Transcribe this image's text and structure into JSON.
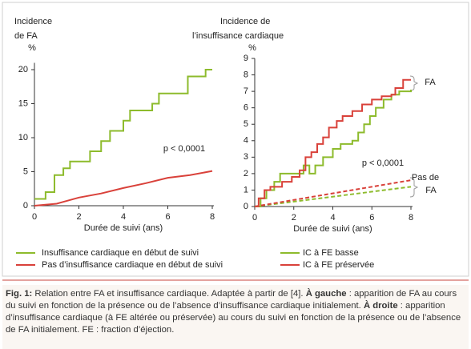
{
  "chart_data": [
    {
      "type": "line",
      "title": [
        "Incidence",
        "de FA"
      ],
      "ylabel": "%",
      "xlabel": "Durée de suivi (ans)",
      "annotation": "p < 0,0001",
      "xlim": [
        0,
        8
      ],
      "xticks": [
        0,
        2,
        4,
        6,
        8
      ],
      "ylim": [
        0,
        21
      ],
      "yticks": [
        0,
        5,
        10,
        15,
        20
      ],
      "series": [
        {
          "name": "Insuffisance cardiaque en début de suivi",
          "color": "#8dbb2c",
          "step": true,
          "dashed": false,
          "x": [
            0,
            0.5,
            0.9,
            1.3,
            1.6,
            2.5,
            3.0,
            3.4,
            4.0,
            4.3,
            5.3,
            5.6,
            6.9,
            7.7,
            8
          ],
          "values": [
            1,
            2,
            4.5,
            5.5,
            6.5,
            8,
            9.5,
            11,
            12.5,
            14,
            15,
            16.5,
            19,
            20,
            20
          ]
        },
        {
          "name": "Pas d’insuffisance cardiaque en début de suivi",
          "color": "#d9413a",
          "step": false,
          "dashed": false,
          "x": [
            0,
            1,
            2,
            3,
            4,
            5,
            6,
            7,
            8
          ],
          "values": [
            0,
            0.3,
            1.2,
            1.8,
            2.6,
            3.3,
            4.1,
            4.5,
            5.1
          ]
        }
      ]
    },
    {
      "type": "line",
      "title": [
        "Incidence de",
        "l’insuffisance cardiaque"
      ],
      "ylabel": "%",
      "xlabel": "Durée de suivi (ans)",
      "annotation": "p < 0,0001",
      "group_labels": [
        "FA",
        "Pas de",
        "FA"
      ],
      "xlim": [
        0,
        8
      ],
      "xticks": [
        0,
        2,
        4,
        6,
        8
      ],
      "ylim": [
        0,
        9
      ],
      "yticks": [
        0,
        1,
        2,
        3,
        4,
        5,
        6,
        7,
        8,
        9
      ],
      "series": [
        {
          "name": "IC à FE basse",
          "color": "#8dbb2c",
          "step": true,
          "dashed": false,
          "x": [
            0,
            0.3,
            0.6,
            1.0,
            1.3,
            2.5,
            2.8,
            3.1,
            3.5,
            4.0,
            4.4,
            5.0,
            5.3,
            5.6,
            5.9,
            6.2,
            6.6,
            7.0,
            7.4,
            8
          ],
          "values": [
            0,
            0.5,
            1,
            1.5,
            2,
            2.5,
            2,
            2.5,
            3,
            3.5,
            3.8,
            4,
            4.5,
            5,
            5.5,
            6,
            6.5,
            6.8,
            7,
            7.1
          ]
        },
        {
          "name": "IC à FE préservée",
          "color": "#d9413a",
          "step": true,
          "dashed": false,
          "x": [
            0,
            0.2,
            0.5,
            0.8,
            1.4,
            1.9,
            2.3,
            2.6,
            2.9,
            3.2,
            3.5,
            3.8,
            4.2,
            4.5,
            5.0,
            5.5,
            6.0,
            6.5,
            7.0,
            7.2,
            7.6,
            8
          ],
          "values": [
            0,
            0.5,
            1,
            1.2,
            1.5,
            1.8,
            2.2,
            3,
            3.3,
            3.8,
            4.2,
            4.8,
            5.2,
            5.5,
            5.8,
            6.2,
            6.5,
            6.7,
            6.8,
            7.2,
            7.7,
            7.7
          ]
        },
        {
          "color": "#8dbb2c",
          "step": false,
          "dashed": true,
          "x": [
            0,
            8
          ],
          "values": [
            0,
            1.2
          ]
        },
        {
          "color": "#d9413a",
          "step": false,
          "dashed": true,
          "x": [
            0,
            8
          ],
          "values": [
            0,
            1.6
          ]
        }
      ]
    }
  ],
  "caption": [
    "Fig. 1:",
    " Relation entre FA et insuffisance cardiaque. Adaptée à partir de [4]. ",
    "À gauche",
    " : apparition de FA au cours du suivi en fonction de la présence ou de l’absence d’insuffisance cardiaque initialement. ",
    "À droite",
    " : apparition d’insuffisance cardiaque (à FE altérée ou préservée) au cours du suivi en fonction de la présence ou de l’absence de FA initialement. FE : fraction d’éjection."
  ]
}
